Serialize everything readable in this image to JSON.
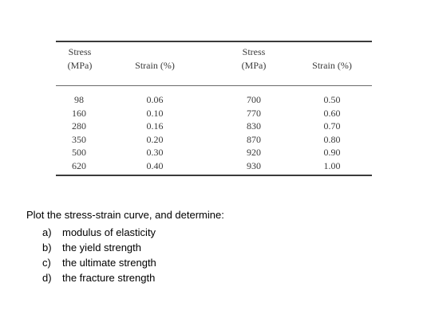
{
  "table": {
    "headers": [
      {
        "line1": "Stress",
        "line2": "(MPa)"
      },
      {
        "line1": "",
        "line2": "Strain (%)"
      },
      {
        "line1": "Stress",
        "line2": "(MPa)"
      },
      {
        "line1": "",
        "line2": "Strain (%)"
      }
    ],
    "columns": [
      [
        "98",
        "160",
        "280",
        "350",
        "500",
        "620"
      ],
      [
        "0.06",
        "0.10",
        "0.16",
        "0.20",
        "0.30",
        "0.40"
      ],
      [
        "700",
        "770",
        "830",
        "870",
        "920",
        "930"
      ],
      [
        "0.50",
        "0.60",
        "0.70",
        "0.80",
        "0.90",
        "1.00"
      ]
    ]
  },
  "questions": {
    "intro": "Plot the stress-strain curve, and determine:",
    "items": [
      {
        "letter": "a)",
        "text": "modulus of elasticity"
      },
      {
        "letter": "b)",
        "text": "the yield strength"
      },
      {
        "letter": "c)",
        "text": "the ultimate strength"
      },
      {
        "letter": "d)",
        "text": "the fracture strength"
      }
    ]
  }
}
